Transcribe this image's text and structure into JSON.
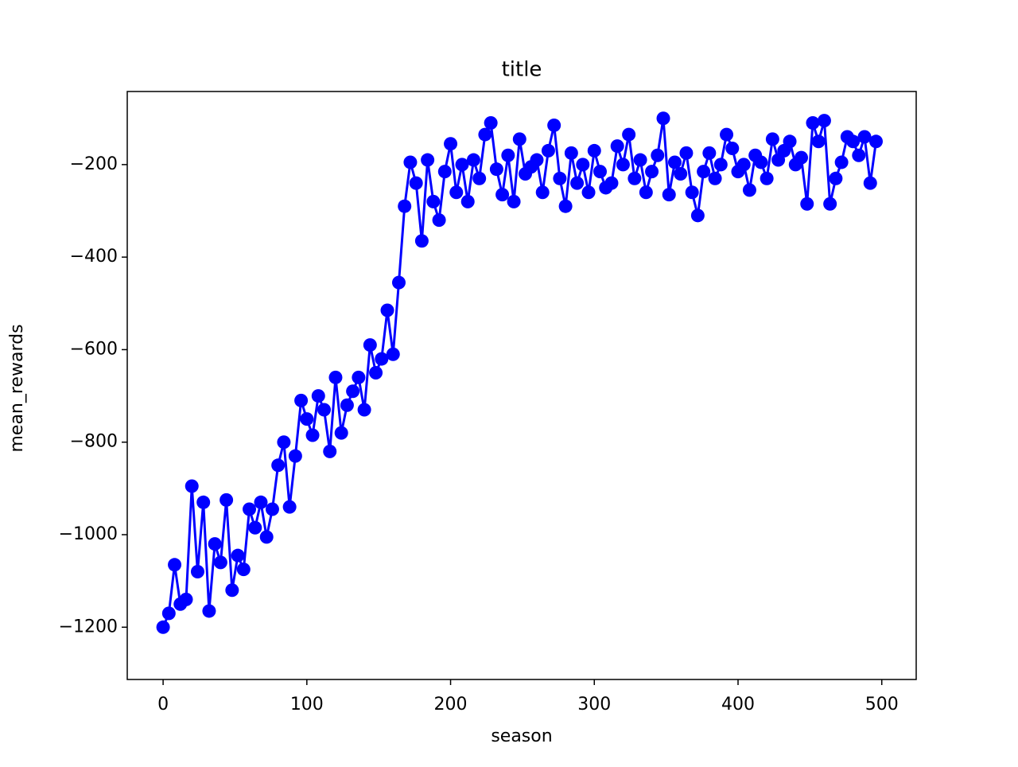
{
  "chart_data": {
    "type": "line",
    "title": "title",
    "xlabel": "season",
    "ylabel": "mean_rewards",
    "x": [
      0,
      4,
      8,
      12,
      16,
      20,
      24,
      28,
      32,
      36,
      40,
      44,
      48,
      52,
      56,
      60,
      64,
      68,
      72,
      76,
      80,
      84,
      88,
      92,
      96,
      100,
      104,
      108,
      112,
      116,
      120,
      124,
      128,
      132,
      136,
      140,
      144,
      148,
      152,
      156,
      160,
      164,
      168,
      172,
      176,
      180,
      184,
      188,
      192,
      196,
      200,
      204,
      208,
      212,
      216,
      220,
      224,
      228,
      232,
      236,
      240,
      244,
      248,
      252,
      256,
      260,
      264,
      268,
      272,
      276,
      280,
      284,
      288,
      292,
      296,
      300,
      304,
      308,
      312,
      316,
      320,
      324,
      328,
      332,
      336,
      340,
      344,
      348,
      352,
      356,
      360,
      364,
      368,
      372,
      376,
      380,
      384,
      388,
      392,
      396,
      400,
      404,
      408,
      412,
      416,
      420,
      424,
      428,
      432,
      436,
      440,
      444,
      448,
      452,
      456,
      460,
      464,
      468,
      472,
      476,
      480,
      484,
      488,
      492,
      496
    ],
    "series": [
      {
        "color": "#0000ff",
        "values": [
          -1200,
          -1170,
          -1065,
          -1150,
          -1140,
          -895,
          -1080,
          -930,
          -1165,
          -1020,
          -1060,
          -925,
          -1120,
          -1045,
          -1075,
          -945,
          -985,
          -930,
          -1005,
          -945,
          -850,
          -800,
          -940,
          -830,
          -710,
          -750,
          -785,
          -700,
          -730,
          -820,
          -660,
          -780,
          -720,
          -690,
          -660,
          -730,
          -590,
          -650,
          -620,
          -515,
          -610,
          -455,
          -290,
          -195,
          -240,
          -365,
          -190,
          -280,
          -320,
          -215,
          -155,
          -260,
          -200,
          -280,
          -190,
          -230,
          -135,
          -110,
          -210,
          -265,
          -180,
          -280,
          -145,
          -220,
          -205,
          -190,
          -260,
          -170,
          -115,
          -230,
          -290,
          -175,
          -240,
          -200,
          -260,
          -170,
          -215,
          -250,
          -240,
          -160,
          -200,
          -135,
          -230,
          -190,
          -260,
          -215,
          -180,
          -100,
          -265,
          -195,
          -220,
          -175,
          -260,
          -310,
          -215,
          -175,
          -230,
          -200,
          -135,
          -165,
          -215,
          -200,
          -255,
          -180,
          -195,
          -230,
          -145,
          -190,
          -170,
          -150,
          -200,
          -185,
          -285,
          -110,
          -150,
          -105,
          -285,
          -230,
          -195,
          -140,
          -150,
          -180,
          -140,
          -240,
          -150
        ]
      }
    ],
    "xlim": [
      -24.95,
      523.95
    ],
    "ylim": [
      -1313,
      -42
    ],
    "xticks": [
      0,
      100,
      200,
      300,
      400,
      500
    ],
    "yticks": [
      {
        "value": -1200,
        "label": "−1200"
      },
      {
        "value": -1000,
        "label": "−1000"
      },
      {
        "value": -800,
        "label": "−800"
      },
      {
        "value": -600,
        "label": "−600"
      },
      {
        "value": -400,
        "label": "−400"
      },
      {
        "value": -200,
        "label": "−200"
      }
    ]
  }
}
